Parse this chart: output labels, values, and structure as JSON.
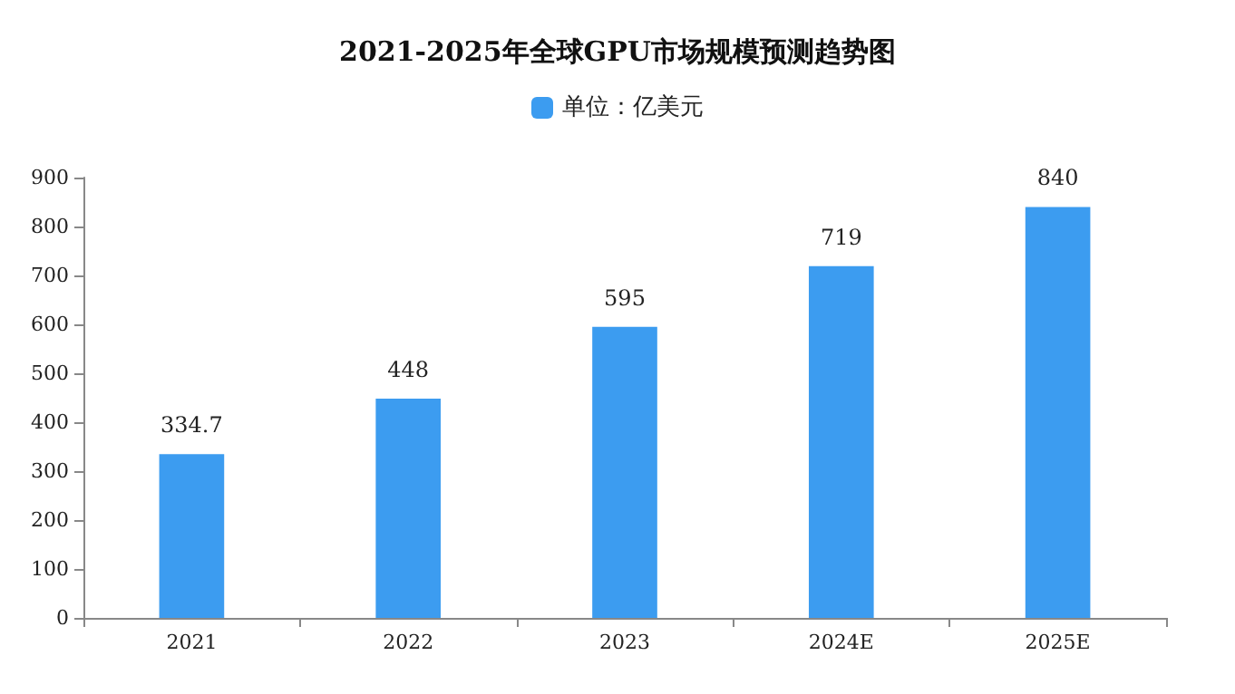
{
  "chart_data": {
    "type": "bar",
    "title": "2021-2025年全球GPU市场规模预测趋势图",
    "categories": [
      "2021",
      "2022",
      "2023",
      "2024E",
      "2025E"
    ],
    "series": [
      {
        "name": "单位：亿美元",
        "color": "#3c9cf0",
        "values": [
          334.7,
          448,
          595,
          719,
          840
        ]
      }
    ],
    "ylim": [
      0,
      900
    ],
    "yticks": [
      0,
      100,
      200,
      300,
      400,
      500,
      600,
      700,
      800,
      900
    ],
    "grid": false,
    "legend": "top",
    "data_labels": true
  }
}
